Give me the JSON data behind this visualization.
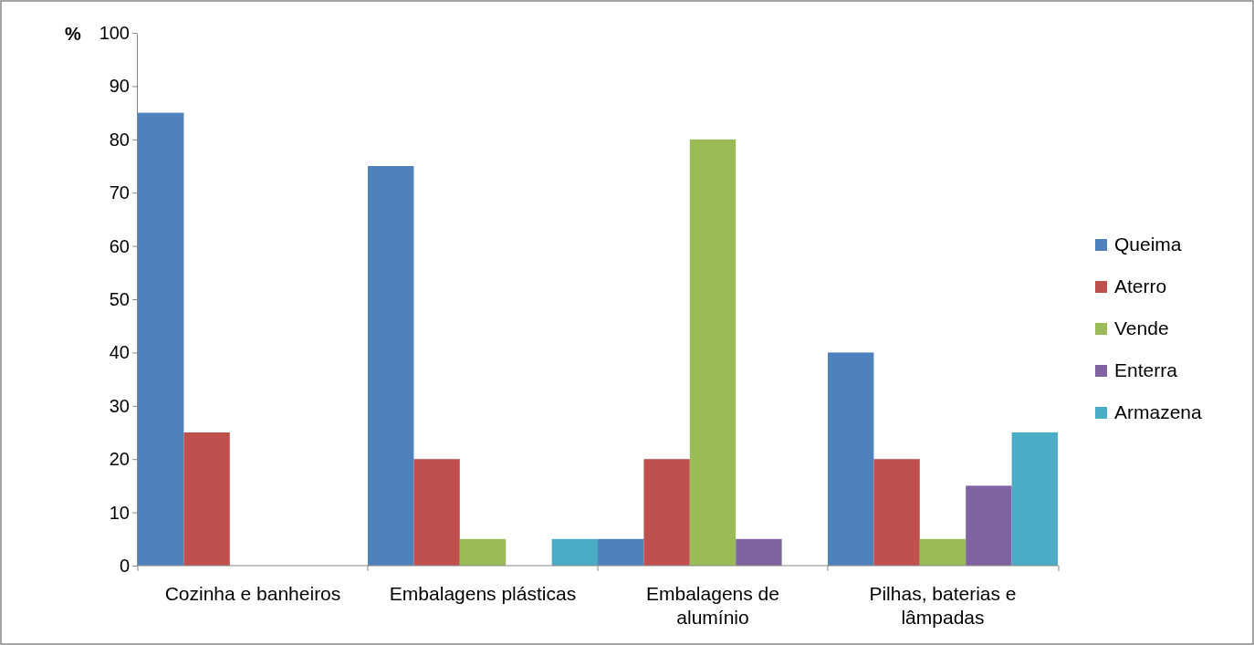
{
  "chart_data": {
    "type": "bar",
    "ylabel": "%",
    "categories": [
      "Cozinha e banheiros",
      "Embalagens plásticas",
      "Embalagens de alumínio",
      "Pilhas, baterias e lâmpadas"
    ],
    "series": [
      {
        "name": "Queima",
        "color": "#4f81bd",
        "values": [
          85,
          75,
          5,
          40
        ]
      },
      {
        "name": "Aterro",
        "color": "#c0504d",
        "values": [
          25,
          20,
          20,
          20
        ]
      },
      {
        "name": "Vende",
        "color": "#9bbb59",
        "values": [
          0,
          5,
          80,
          5
        ]
      },
      {
        "name": "Enterra",
        "color": "#8064a2",
        "values": [
          0,
          0,
          5,
          15
        ]
      },
      {
        "name": "Armazena",
        "color": "#4bacc6",
        "values": [
          0,
          5,
          0,
          25
        ]
      }
    ],
    "ylim": [
      0,
      100
    ],
    "yticks": [
      0,
      10,
      20,
      30,
      40,
      50,
      60,
      70,
      80,
      90,
      100
    ],
    "grid": false,
    "legend": "right"
  }
}
